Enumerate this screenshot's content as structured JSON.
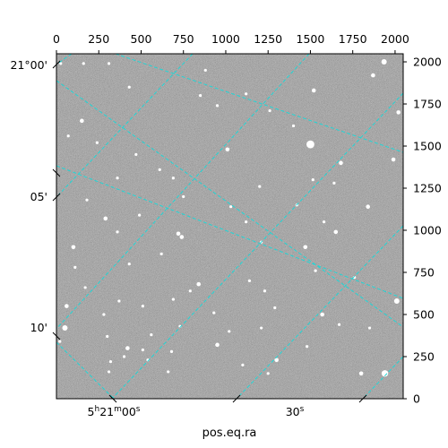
{
  "chart_data": {
    "type": "scatter",
    "description_source": "astronomical image with RA/Dec world-coordinate overlay grid",
    "xlabel": "pos.eq.ra",
    "top_axis": {
      "ticks": [
        0,
        250,
        500,
        750,
        1000,
        1250,
        1500,
        1750,
        2000
      ],
      "xlim": [
        0,
        2048
      ]
    },
    "right_axis": {
      "ticks": [
        0,
        250,
        500,
        750,
        1000,
        1250,
        1500,
        1750,
        2000
      ],
      "ylim": [
        0,
        2048
      ]
    },
    "left_axis": {
      "labels": [
        "21°00'",
        "05'",
        "10'"
      ]
    },
    "bottom_axis": {
      "labels": [
        "5h21m00s",
        "30s"
      ]
    },
    "grid_color": "#1fd6d6",
    "background": "grayscale star field",
    "stars": [
      {
        "x": 1935,
        "y": 2000,
        "m": 3
      },
      {
        "x": 1870,
        "y": 1920,
        "m": 2
      },
      {
        "x": 1515,
        "y": 1300,
        "m": 1
      },
      {
        "x": 1500,
        "y": 1510,
        "m": 5
      },
      {
        "x": 1520,
        "y": 1830,
        "m": 2
      },
      {
        "x": 1680,
        "y": 1400,
        "m": 2
      },
      {
        "x": 1990,
        "y": 1420,
        "m": 2
      },
      {
        "x": 1840,
        "y": 1140,
        "m": 2
      },
      {
        "x": 1650,
        "y": 990,
        "m": 2
      },
      {
        "x": 1420,
        "y": 1150,
        "m": 1
      },
      {
        "x": 1470,
        "y": 900,
        "m": 2
      },
      {
        "x": 1210,
        "y": 930,
        "m": 1
      },
      {
        "x": 1010,
        "y": 1480,
        "m": 2
      },
      {
        "x": 1260,
        "y": 1710,
        "m": 1
      },
      {
        "x": 850,
        "y": 1800,
        "m": 1
      },
      {
        "x": 880,
        "y": 1950,
        "m": 1
      },
      {
        "x": 310,
        "y": 1990,
        "m": 1
      },
      {
        "x": 160,
        "y": 1990,
        "m": 1
      },
      {
        "x": 25,
        "y": 1990,
        "m": 1
      },
      {
        "x": 150,
        "y": 1650,
        "m": 2
      },
      {
        "x": 70,
        "y": 1560,
        "m": 1
      },
      {
        "x": 240,
        "y": 1520,
        "m": 1
      },
      {
        "x": 470,
        "y": 1450,
        "m": 1
      },
      {
        "x": 690,
        "y": 1310,
        "m": 1
      },
      {
        "x": 610,
        "y": 1360,
        "m": 1
      },
      {
        "x": 360,
        "y": 1310,
        "m": 1
      },
      {
        "x": 180,
        "y": 1180,
        "m": 1
      },
      {
        "x": 290,
        "y": 1070,
        "m": 2
      },
      {
        "x": 490,
        "y": 1090,
        "m": 1
      },
      {
        "x": 750,
        "y": 1200,
        "m": 1
      },
      {
        "x": 1030,
        "y": 1140,
        "m": 1
      },
      {
        "x": 720,
        "y": 980,
        "m": 2
      },
      {
        "x": 740,
        "y": 960,
        "m": 2
      },
      {
        "x": 360,
        "y": 990,
        "m": 1
      },
      {
        "x": 100,
        "y": 900,
        "m": 2
      },
      {
        "x": 110,
        "y": 780,
        "m": 1
      },
      {
        "x": 430,
        "y": 800,
        "m": 1
      },
      {
        "x": 620,
        "y": 860,
        "m": 1
      },
      {
        "x": 840,
        "y": 680,
        "m": 2
      },
      {
        "x": 790,
        "y": 640,
        "m": 1
      },
      {
        "x": 510,
        "y": 550,
        "m": 1
      },
      {
        "x": 370,
        "y": 580,
        "m": 1
      },
      {
        "x": 690,
        "y": 590,
        "m": 1
      },
      {
        "x": 1230,
        "y": 640,
        "m": 1
      },
      {
        "x": 1290,
        "y": 540,
        "m": 1
      },
      {
        "x": 1140,
        "y": 700,
        "m": 1
      },
      {
        "x": 1210,
        "y": 420,
        "m": 1
      },
      {
        "x": 1530,
        "y": 760,
        "m": 1
      },
      {
        "x": 1570,
        "y": 500,
        "m": 2
      },
      {
        "x": 1850,
        "y": 420,
        "m": 1
      },
      {
        "x": 2010,
        "y": 580,
        "m": 3
      },
      {
        "x": 1940,
        "y": 150,
        "m": 4
      },
      {
        "x": 1800,
        "y": 150,
        "m": 2
      },
      {
        "x": 1670,
        "y": 440,
        "m": 1
      },
      {
        "x": 1300,
        "y": 230,
        "m": 2
      },
      {
        "x": 1250,
        "y": 150,
        "m": 1
      },
      {
        "x": 1480,
        "y": 310,
        "m": 1
      },
      {
        "x": 950,
        "y": 320,
        "m": 2
      },
      {
        "x": 930,
        "y": 510,
        "m": 1
      },
      {
        "x": 680,
        "y": 280,
        "m": 1
      },
      {
        "x": 660,
        "y": 160,
        "m": 1
      },
      {
        "x": 540,
        "y": 230,
        "m": 1
      },
      {
        "x": 510,
        "y": 290,
        "m": 1
      },
      {
        "x": 420,
        "y": 300,
        "m": 2
      },
      {
        "x": 400,
        "y": 250,
        "m": 1
      },
      {
        "x": 320,
        "y": 220,
        "m": 1
      },
      {
        "x": 310,
        "y": 160,
        "m": 1
      },
      {
        "x": 50,
        "y": 420,
        "m": 3
      },
      {
        "x": 60,
        "y": 550,
        "m": 2
      },
      {
        "x": 280,
        "y": 500,
        "m": 1
      },
      {
        "x": 730,
        "y": 430,
        "m": 1
      },
      {
        "x": 20,
        "y": 340,
        "m": 1
      },
      {
        "x": 1020,
        "y": 400,
        "m": 1
      },
      {
        "x": 170,
        "y": 660,
        "m": 1
      },
      {
        "x": 560,
        "y": 380,
        "m": 1
      },
      {
        "x": 1100,
        "y": 200,
        "m": 1
      },
      {
        "x": 1760,
        "y": 720,
        "m": 1
      },
      {
        "x": 1400,
        "y": 1620,
        "m": 1
      },
      {
        "x": 1120,
        "y": 1810,
        "m": 1
      },
      {
        "x": 950,
        "y": 1740,
        "m": 1
      },
      {
        "x": 430,
        "y": 1850,
        "m": 1
      },
      {
        "x": 1640,
        "y": 1280,
        "m": 1
      },
      {
        "x": 1200,
        "y": 1260,
        "m": 1
      },
      {
        "x": 2020,
        "y": 1700,
        "m": 2
      },
      {
        "x": 1580,
        "y": 1050,
        "m": 1
      },
      {
        "x": 1120,
        "y": 1050,
        "m": 1
      },
      {
        "x": 300,
        "y": 370,
        "m": 1
      }
    ]
  }
}
